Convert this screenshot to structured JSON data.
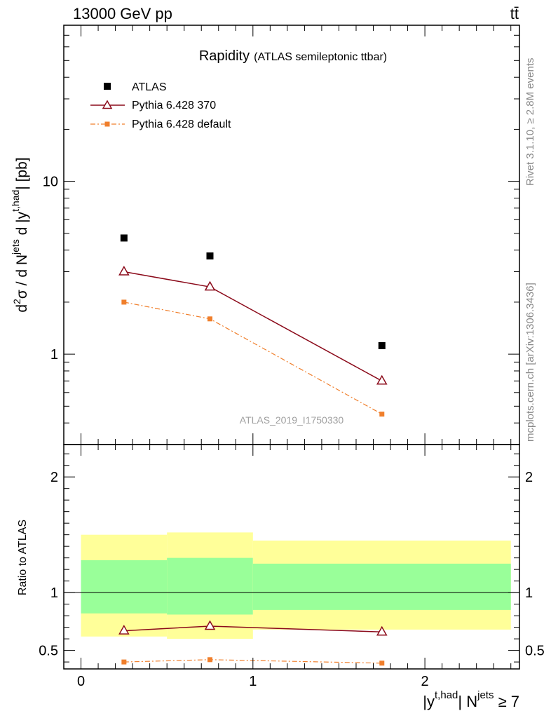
{
  "header": {
    "energy_label": "13000 GeV pp",
    "process_label": "tt̄"
  },
  "side_texts": {
    "rivet": "Rivet 3.1.10, ≥ 2.8M events",
    "mcplots": "mcplots.cern.ch [arXiv:1306.3436]"
  },
  "watermark": "ATLAS_2019_I1750330",
  "chart_data": [
    {
      "type": "scatter",
      "panel": "main",
      "title_main": "Rapidity",
      "title_sub": "(ATLAS semileptonic ttbar)",
      "ylabel": {
        "pre": "d",
        "sup1": "2",
        "mid1": "σ / d N",
        "sup2": "jets",
        "mid2": " d |y",
        "sup3": "t,had",
        "post": "| [pb]"
      },
      "yscale": "log",
      "xlim": [
        -0.1,
        2.55
      ],
      "ylim": [
        0.3,
        80
      ],
      "yticks_major": [
        1,
        10
      ],
      "ytick_labels": [
        "1",
        "10"
      ],
      "legend_position": "top-left",
      "series": [
        {
          "name": "ATLAS",
          "style": "data",
          "color": "#000000",
          "marker": "square",
          "x": [
            0.25,
            0.75,
            1.75
          ],
          "y": [
            4.7,
            3.7,
            1.12
          ]
        },
        {
          "name": "Pythia 6.428 370",
          "style": "line",
          "color": "#8b0a1a",
          "marker": "open-triangle",
          "x": [
            0.25,
            0.75,
            1.75
          ],
          "y": [
            3.0,
            2.45,
            0.7
          ]
        },
        {
          "name": "Pythia 6.428 default",
          "style": "dashdot",
          "color": "#f07f2c",
          "marker": "square",
          "x": [
            0.25,
            0.75,
            1.75
          ],
          "y": [
            2.0,
            1.6,
            0.45
          ]
        }
      ]
    },
    {
      "type": "scatter",
      "panel": "ratio",
      "ylabel": "Ratio to ATLAS",
      "yscale": "linear",
      "xlabel": {
        "pre": "|y",
        "sup1": "t,had",
        "mid": "| N",
        "sup2": "jets",
        "post": " ≥ 7"
      },
      "xlim": [
        -0.1,
        2.55
      ],
      "ylim": [
        0.34,
        2.28
      ],
      "xticks_major": [
        0,
        1,
        2
      ],
      "xtick_labels": [
        "0",
        "1",
        "2"
      ],
      "yticks_major": [
        0.5,
        1,
        2
      ],
      "ytick_labels": [
        "0.5",
        "1",
        "2"
      ],
      "bands": [
        {
          "x0": 0.0,
          "x1": 0.5,
          "yellow": [
            0.62,
            1.5
          ],
          "green": [
            0.82,
            1.28
          ]
        },
        {
          "x0": 0.5,
          "x1": 1.0,
          "yellow": [
            0.6,
            1.52
          ],
          "green": [
            0.81,
            1.3
          ]
        },
        {
          "x0": 1.0,
          "x1": 2.5,
          "yellow": [
            0.68,
            1.45
          ],
          "green": [
            0.85,
            1.25
          ]
        }
      ],
      "colors": {
        "yellow": "#ffff99",
        "green": "#99ff99"
      },
      "series": [
        {
          "name": "Pythia 6.428 370",
          "color": "#8b0a1a",
          "marker": "open-triangle",
          "x": [
            0.25,
            0.75,
            1.75
          ],
          "y": [
            0.67,
            0.71,
            0.66
          ]
        },
        {
          "name": "Pythia 6.428 default",
          "color": "#f07f2c",
          "marker": "square",
          "x": [
            0.25,
            0.75,
            1.75
          ],
          "y": [
            0.4,
            0.42,
            0.39
          ]
        }
      ]
    }
  ]
}
